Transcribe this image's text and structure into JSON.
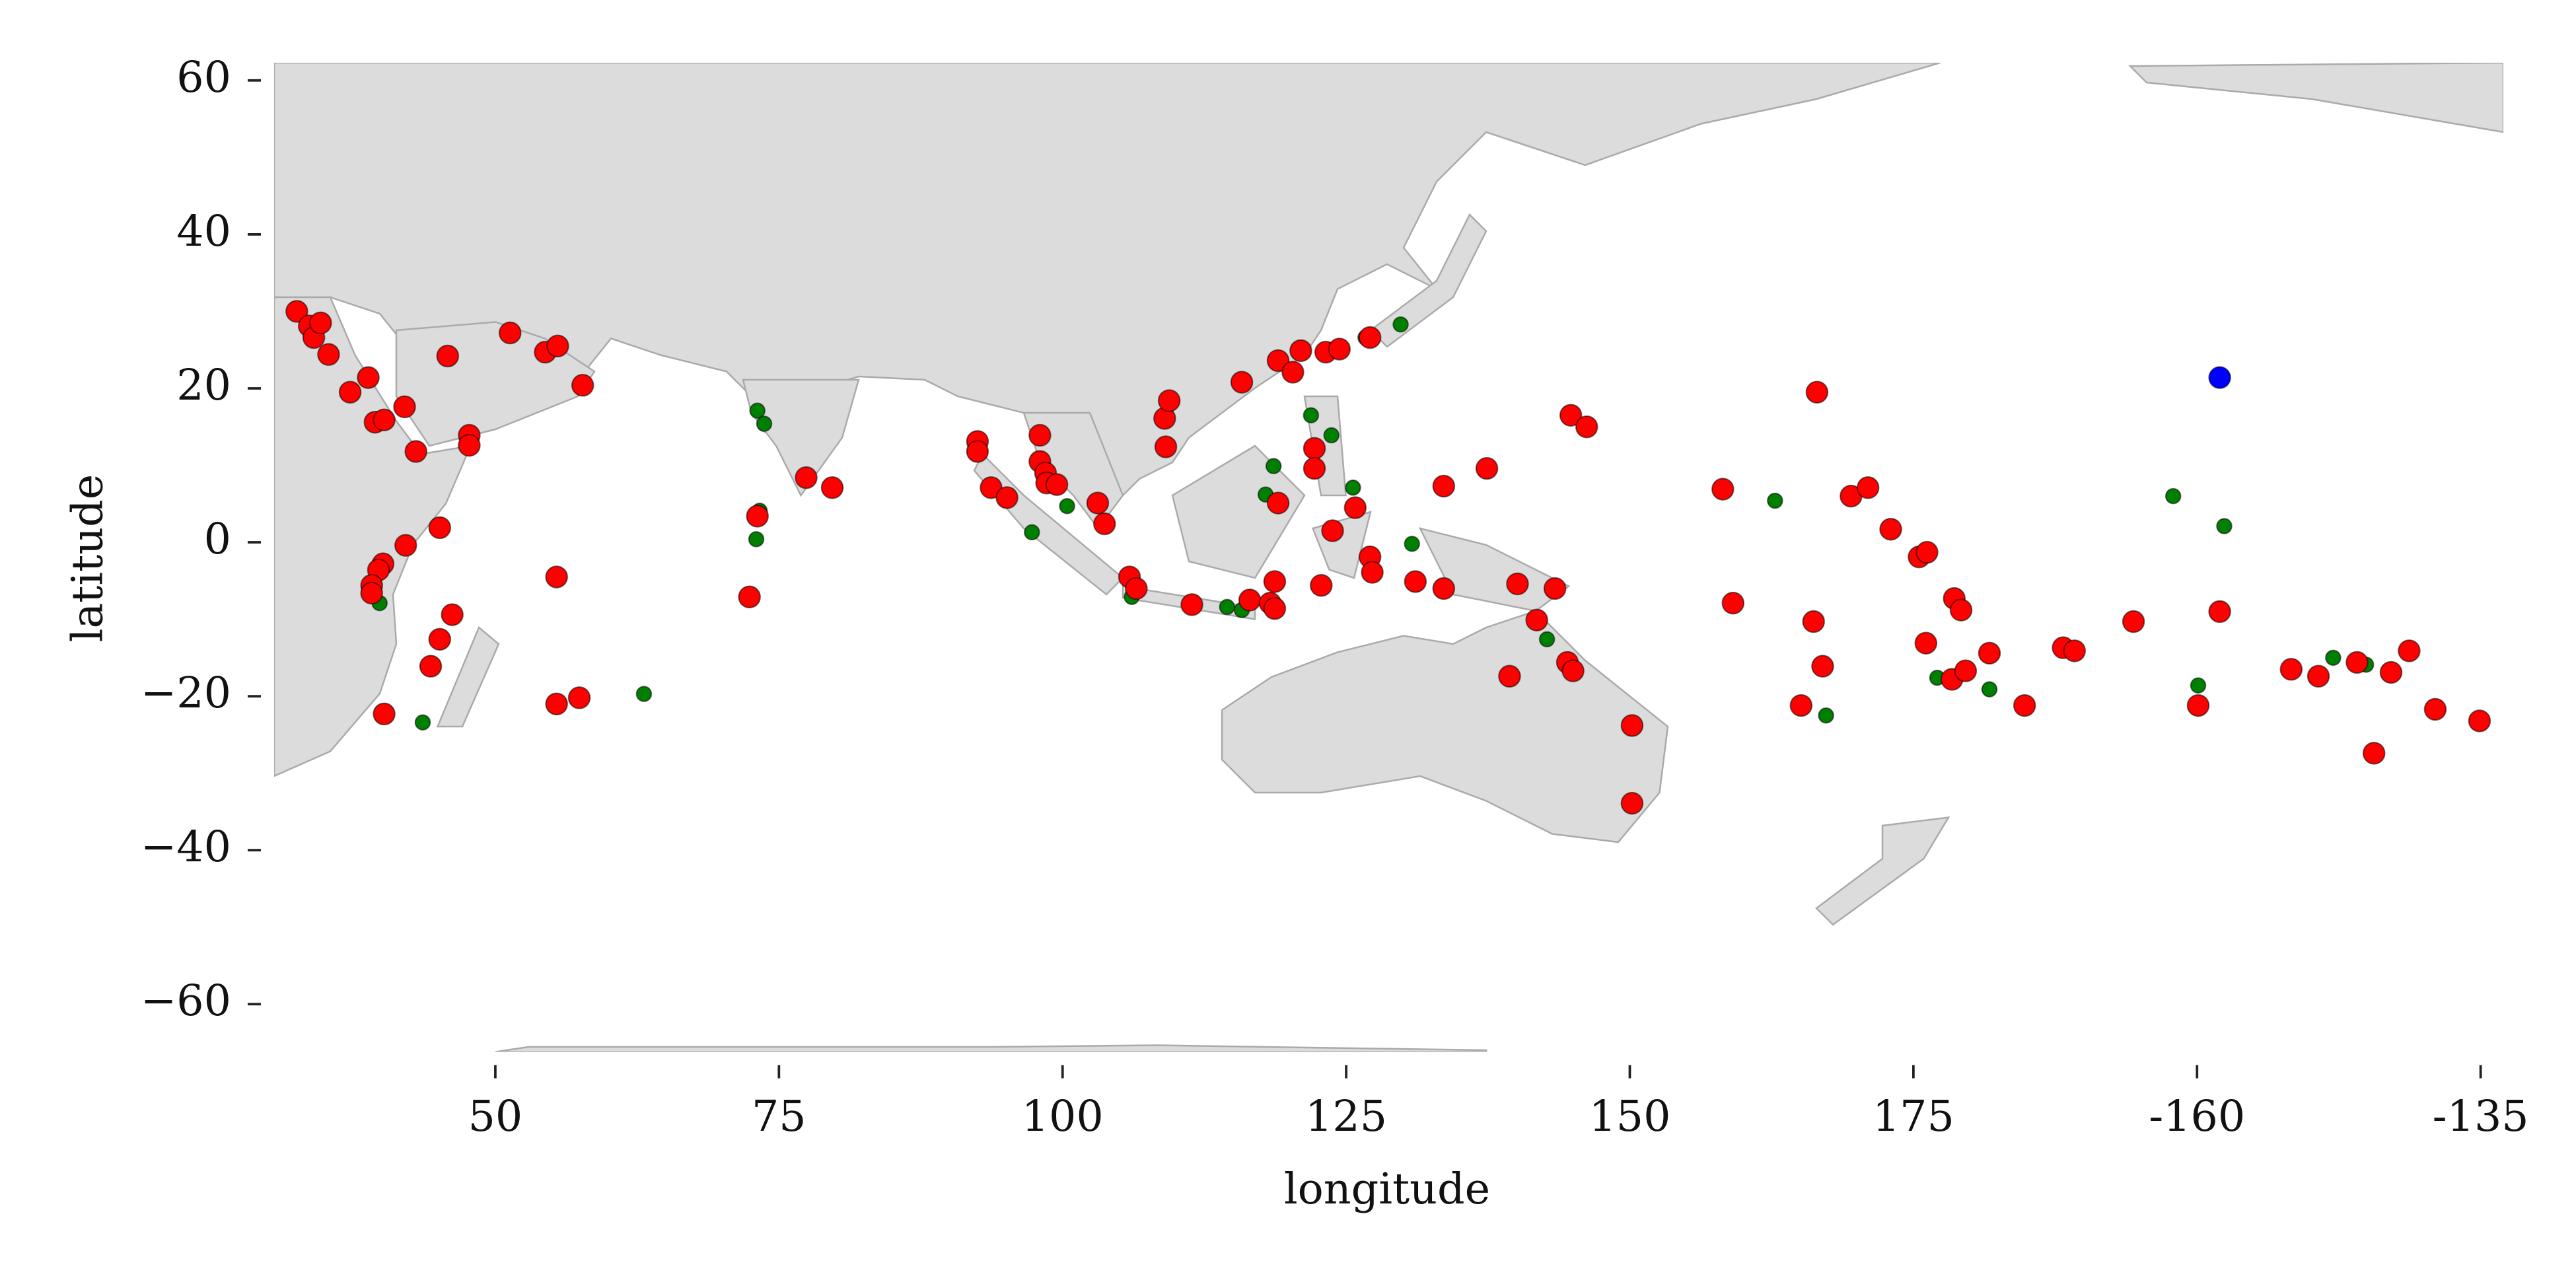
{
  "chart_data": {
    "type": "scatter",
    "xlabel": "longitude",
    "ylabel": "latitude",
    "xlim": [
      30.5,
      227
    ],
    "ylim": [
      -66.2,
      62.3
    ],
    "xticks": [
      50,
      75,
      100,
      125,
      150,
      175,
      {
        "value": 200,
        "label": "-160"
      },
      {
        "value": 225,
        "label": "-135"
      }
    ],
    "yticks": [
      60,
      40,
      20,
      0,
      {
        "value": -20,
        "label": "−20"
      },
      {
        "value": -40,
        "label": "−40"
      },
      {
        "value": -60,
        "label": "−60"
      }
    ],
    "series": [
      {
        "color": "#008000",
        "x": [
          73.1,
          73.7,
          73.3,
          73.0,
          63.1,
          43.6,
          39.8,
          97.3,
          100.4,
          106.1,
          114.5,
          115.8,
          118.6,
          117.9,
          121.9,
          123.7,
          125.6,
          126.7,
          129.8,
          130.8,
          142.7,
          162.8,
          167.3,
          177.1,
          181.7,
          197.9,
          202.4,
          200.1,
          212.0,
          214.9
        ],
        "y": [
          17.1,
          15.4,
          4.1,
          0.4,
          -19.7,
          -23.4,
          -7.9,
          1.3,
          4.7,
          -7.1,
          -8.4,
          -8.8,
          9.9,
          6.2,
          16.5,
          13.9,
          7.1,
          26.6,
          28.3,
          -0.2,
          -12.6,
          5.4,
          -22.5,
          -17.6,
          -19.1,
          6.0,
          2.1,
          -18.6,
          -15.0,
          -15.9
        ]
      },
      {
        "color": "#ff0000",
        "x": [
          32.5,
          33.6,
          34.0,
          34.6,
          35.3,
          37.2,
          38.8,
          39.4,
          40.2,
          42.0,
          43.0,
          45.8,
          47.7,
          47.7,
          45.1,
          42.1,
          40.1,
          39.7,
          39.1,
          39.1,
          46.2,
          45.1,
          44.3,
          40.2,
          51.3,
          54.4,
          55.5,
          57.7,
          55.4,
          55.4,
          57.4,
          72.4,
          73.1,
          77.4,
          79.7,
          92.5,
          92.5,
          93.7,
          95.1,
          98.0,
          98.0,
          98.5,
          98.6,
          99.5,
          103.1,
          103.7,
          105.9,
          106.5,
          111.4,
          109.0,
          109.4,
          109.1,
          115.8,
          116.5,
          118.3,
          118.7,
          118.7,
          119.0,
          119.0,
          120.3,
          121.0,
          122.2,
          122.2,
          122.8,
          123.2,
          124.4,
          123.8,
          125.8,
          127.1,
          127.1,
          127.3,
          131.1,
          133.6,
          133.6,
          137.4,
          139.4,
          140.1,
          141.8,
          143.4,
          144.5,
          145.0,
          144.8,
          146.2,
          150.2,
          150.2,
          158.2,
          159.1,
          165.1,
          166.2,
          166.5,
          167.0,
          169.5,
          171.0,
          173.0,
          175.5,
          176.2,
          176.1,
          178.6,
          179.2,
          178.4,
          179.6,
          181.7,
          184.8,
          188.2,
          189.2,
          194.4,
          200.1,
          202.0,
          208.3,
          210.7,
          214.1,
          217.1,
          218.7,
          215.6,
          221.0,
          224.9
        ],
        "y": [
          30.0,
          28.1,
          26.6,
          28.5,
          24.4,
          19.5,
          21.4,
          15.6,
          15.9,
          17.6,
          11.8,
          24.2,
          13.9,
          12.6,
          1.9,
          -0.4,
          -2.8,
          -3.6,
          -5.6,
          -6.6,
          -9.4,
          -12.6,
          -16.1,
          -22.3,
          27.2,
          24.7,
          25.5,
          20.4,
          -4.5,
          -21.0,
          -20.2,
          -7.1,
          3.4,
          8.4,
          7.1,
          13.1,
          11.8,
          7.1,
          5.8,
          13.9,
          10.5,
          9.0,
          7.7,
          7.5,
          5.1,
          2.4,
          -4.5,
          -6.0,
          -8.1,
          16.1,
          18.4,
          12.4,
          20.8,
          -7.5,
          -7.9,
          -5.1,
          -8.6,
          5.1,
          23.6,
          22.1,
          24.9,
          12.2,
          9.6,
          -5.6,
          24.7,
          25.1,
          1.5,
          4.5,
          26.6,
          -1.9,
          -3.9,
          -5.1,
          -6.0,
          7.3,
          9.6,
          -17.4,
          -5.4,
          -10.1,
          -6.0,
          -15.6,
          -16.7,
          16.5,
          15.0,
          -23.8,
          -33.9,
          6.9,
          -7.9,
          -21.2,
          -10.3,
          19.5,
          -16.1,
          6.0,
          7.1,
          1.7,
          -1.9,
          -1.3,
          -13.1,
          -7.3,
          -8.8,
          -17.8,
          -16.7,
          -14.4,
          -21.2,
          -13.7,
          -14.1,
          -10.3,
          -21.2,
          -9.0,
          -16.5,
          -17.4,
          -15.6,
          -16.9,
          -14.1,
          -27.4,
          -21.7,
          -23.2
        ]
      },
      {
        "color": "#0000ff",
        "x": [
          202.0
        ],
        "y": [
          21.4
        ]
      }
    ]
  }
}
